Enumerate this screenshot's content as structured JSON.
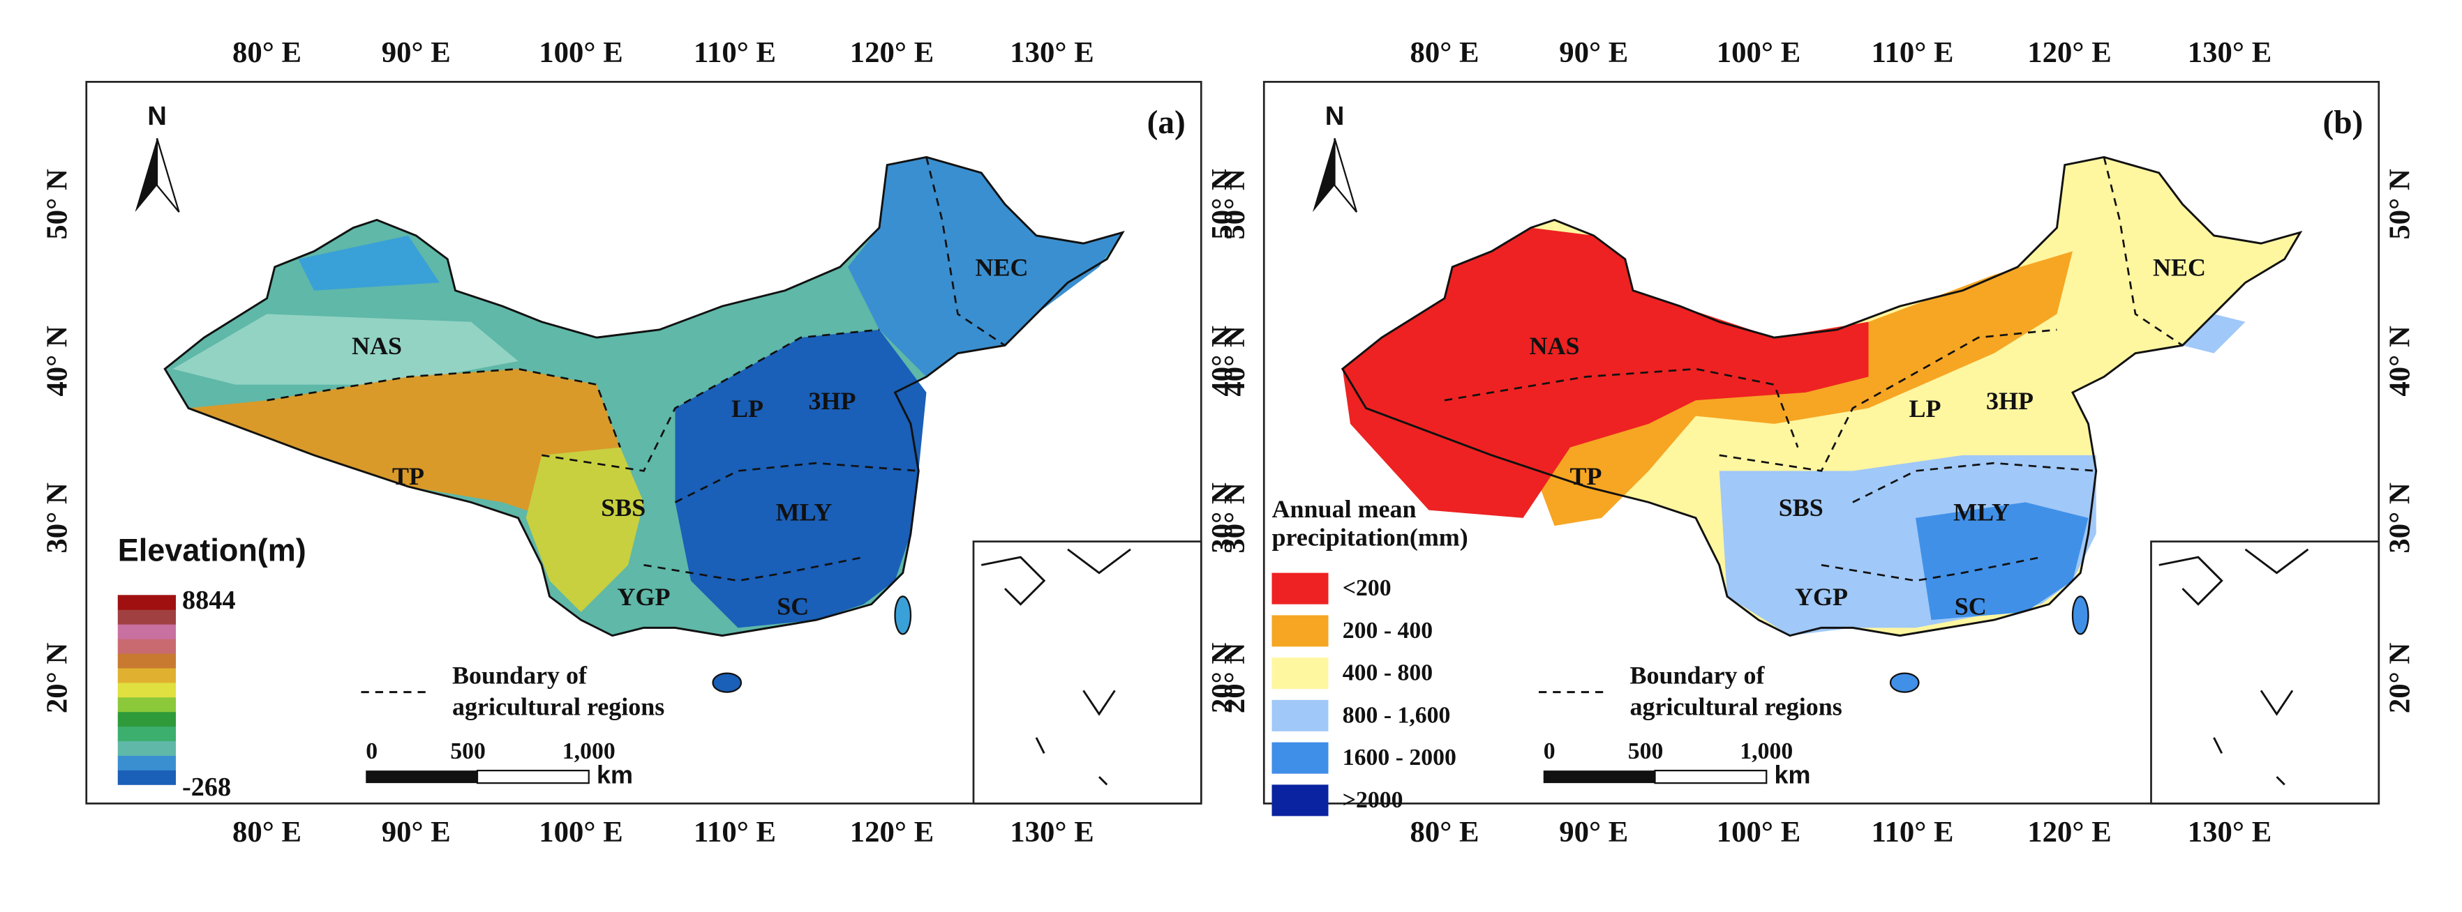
{
  "panels": [
    {
      "label": "(a)",
      "north": "N",
      "lon_ticks": [
        "80° E",
        "90° E",
        "100° E",
        "110° E",
        "120° E",
        "130° E"
      ],
      "lat_ticks": [
        "50° N",
        "40° N",
        "30° N",
        "20° N"
      ],
      "regions": [
        "NAS",
        "TP",
        "SBS",
        "YGP",
        "LP",
        "3HP",
        "MLY",
        "SC",
        "NEC"
      ],
      "legend": {
        "title": [
          "Elevation(m)"
        ],
        "max": "8844",
        "min": "-268"
      },
      "boundary": [
        "Boundary of",
        "agricultural regions"
      ],
      "scale": [
        "0",
        "500",
        "1,000"
      ],
      "scale_unit": "km"
    },
    {
      "label": "(b)",
      "north": "N",
      "lon_ticks": [
        "80° E",
        "90° E",
        "100° E",
        "110° E",
        "120° E",
        "130° E"
      ],
      "lat_ticks": [
        "50° N",
        "40° N",
        "30° N",
        "20° N"
      ],
      "regions": [
        "NAS",
        "TP",
        "SBS",
        "YGP",
        "LP",
        "3HP",
        "MLY",
        "SC",
        "NEC"
      ],
      "legend": {
        "title": [
          "Annual mean",
          "precipitation(mm)"
        ],
        "classes": [
          {
            "label": "<200",
            "color": "#ee2222"
          },
          {
            "label": "200 - 400",
            "color": "#f6a623"
          },
          {
            "label": "400 - 800",
            "color": "#fff6a0"
          },
          {
            "label": "800 - 1,600",
            "color": "#a0c8f8"
          },
          {
            "label": "1600 - 2000",
            "color": "#3f8ee8"
          },
          {
            "label": ">2000",
            "color": "#0a23a0"
          }
        ]
      },
      "boundary": [
        "Boundary of",
        "agricultural regions"
      ],
      "scale": [
        "0",
        "500",
        "1,000"
      ],
      "scale_unit": "km"
    }
  ]
}
